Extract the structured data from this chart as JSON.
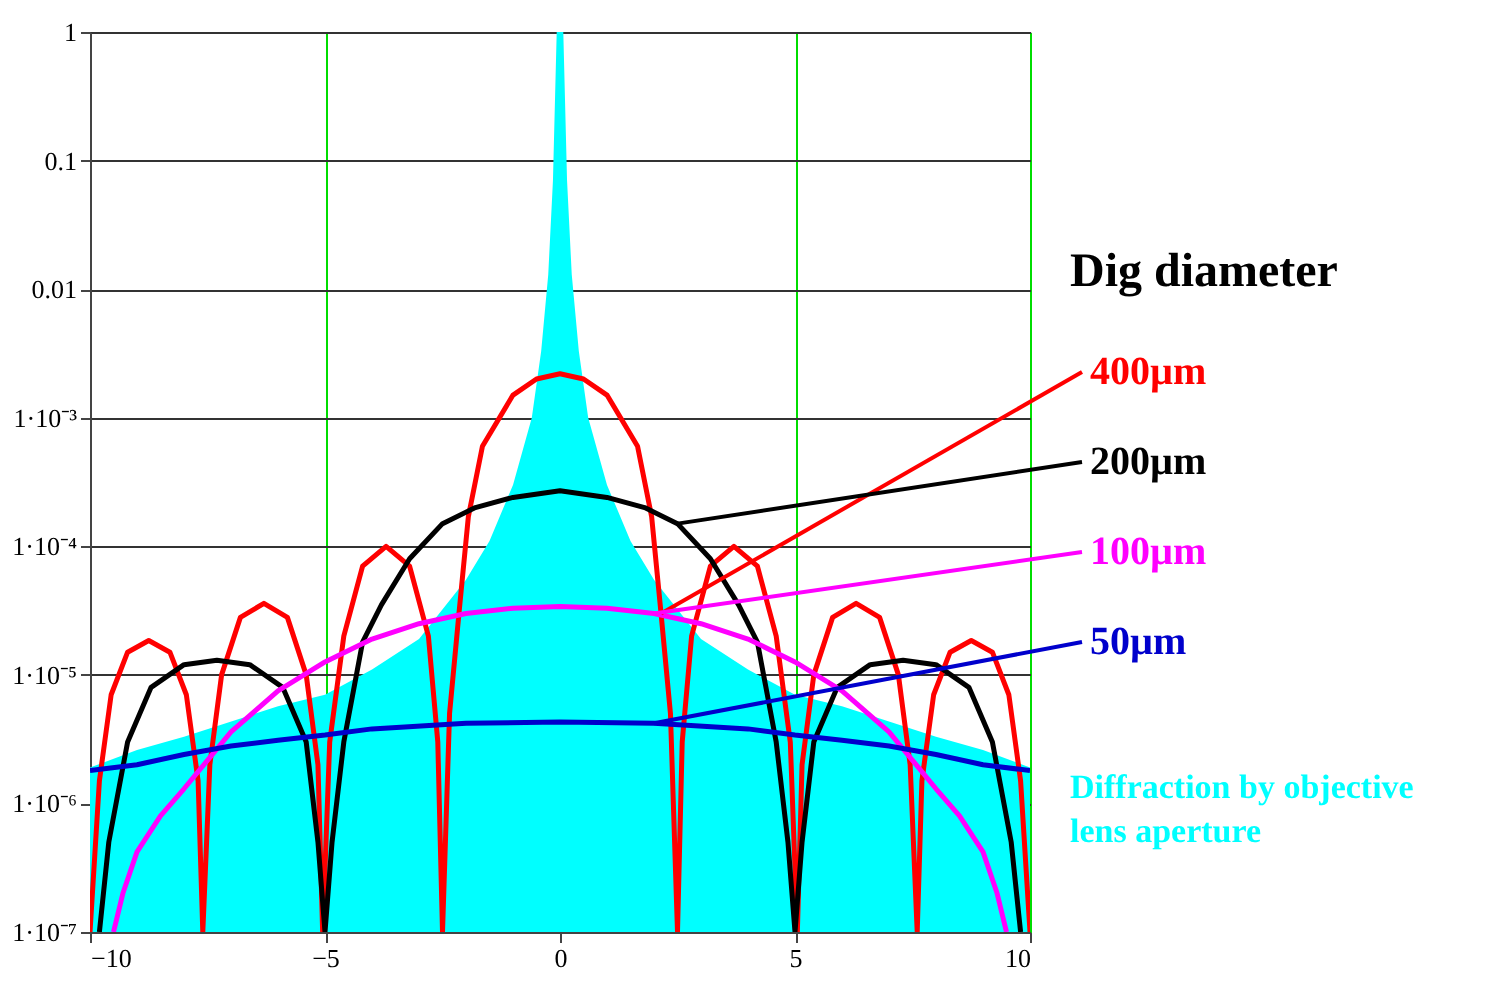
{
  "chart_data": {
    "type": "line",
    "legend_title": "Dig diameter",
    "legend": "right",
    "log": "y",
    "grid": true,
    "line_style": "solid",
    "xlim": [
      -10,
      10
    ],
    "xticks": [
      -10,
      -5,
      0,
      5,
      10
    ],
    "ylim": [
      1e-07,
      1
    ],
    "yticks": [
      {
        "value": 1e-07,
        "label": "1·10⁻⁷"
      },
      {
        "value": 1e-06,
        "label": "1·10⁻⁶"
      },
      {
        "value": 1e-05,
        "label": "1·10⁻⁵"
      },
      {
        "value": 0.0001,
        "label": "1·10⁻⁴"
      },
      {
        "value": 0.001,
        "label": "1·10⁻³"
      },
      0.01,
      0.1,
      1
    ],
    "series": [
      {
        "name": "Diffraction by  objective\nlens aperture",
        "type": "area",
        "color": "#00ffff",
        "x": [
          -10,
          -9,
          -8,
          -6,
          -5,
          -4,
          -3,
          -2,
          -1.5,
          -1,
          -0.6,
          -0.4,
          -0.25,
          -0.15,
          -0.07,
          0,
          0.07,
          0.15,
          0.25,
          0.4,
          0.6,
          1,
          1.5,
          2,
          3,
          4,
          5,
          6,
          8,
          9,
          10
        ],
        "values": [
          1.9e-06,
          2.6e-06,
          3.3e-06,
          5.7e-06,
          7e-06,
          1.1e-05,
          1.9e-05,
          5.5e-05,
          0.00011,
          0.0003,
          0.001,
          0.0033,
          0.013,
          0.07,
          1,
          1,
          1,
          0.07,
          0.013,
          0.0033,
          0.001,
          0.0003,
          0.00011,
          5.5e-05,
          1.9e-05,
          1.1e-05,
          7e-06,
          5.7e-06,
          3.3e-06,
          2.6e-06,
          1.9e-06
        ]
      },
      {
        "name": "400µm",
        "color": "#ff0000",
        "x": [
          -10,
          -9.8,
          -9.55,
          -9.2,
          -8.75,
          -8.3,
          -7.95,
          -7.7,
          -7.6,
          -7.45,
          -7.2,
          -6.8,
          -6.3,
          -5.8,
          -5.4,
          -5.15,
          -5.05,
          -4.9,
          -4.6,
          -4.2,
          -3.7,
          -3.2,
          -2.8,
          -2.6,
          -2.5,
          -2.35,
          -2.15,
          -1.95,
          -1.65,
          -1,
          -0.5,
          0,
          0.5,
          1,
          1.65,
          1.95,
          2.15,
          2.35,
          2.5,
          2.6,
          2.8,
          3.2,
          3.7,
          4.2,
          4.6,
          4.9,
          5.05,
          5.15,
          5.4,
          5.8,
          6.3,
          6.8,
          7.2,
          7.45,
          7.6,
          7.7,
          7.95,
          8.3,
          8.75,
          9.2,
          9.55,
          9.8,
          10
        ],
        "values": [
          1e-07,
          1.5e-06,
          7e-06,
          1.5e-05,
          1.85e-05,
          1.5e-05,
          7e-06,
          1.5e-06,
          1e-07,
          2e-06,
          1e-05,
          2.8e-05,
          3.6e-05,
          2.8e-05,
          1e-05,
          2e-06,
          1e-07,
          3e-06,
          2e-05,
          7e-05,
          0.0001,
          7e-05,
          2e-05,
          3e-06,
          1e-07,
          5e-06,
          3e-05,
          0.00017,
          0.0006,
          0.0015,
          0.002,
          0.0022,
          0.002,
          0.0015,
          0.0006,
          0.00017,
          3e-05,
          5e-06,
          1e-07,
          3e-06,
          2e-05,
          7e-05,
          0.0001,
          7e-05,
          2e-05,
          3e-06,
          1e-07,
          2e-06,
          1e-05,
          2.8e-05,
          3.6e-05,
          2.8e-05,
          1e-05,
          2e-06,
          1e-07,
          1.5e-06,
          7e-06,
          1.5e-05,
          1.85e-05,
          1.5e-05,
          7e-06,
          1.5e-06,
          1e-07
        ]
      },
      {
        "name": "200µm",
        "color": "#000000",
        "x": [
          -9.8,
          -9.6,
          -9.2,
          -8.7,
          -8,
          -7.3,
          -6.6,
          -5.9,
          -5.4,
          -5.15,
          -5,
          -4.85,
          -4.6,
          -4.2,
          -3.8,
          -3.2,
          -2.5,
          -1.8,
          -1,
          0,
          1,
          1.8,
          2.5,
          3.2,
          3.8,
          4.2,
          4.6,
          4.85,
          5,
          5.15,
          5.4,
          5.9,
          6.6,
          7.3,
          8,
          8.7,
          9.2,
          9.6,
          9.8
        ],
        "values": [
          1e-07,
          5e-07,
          3e-06,
          8e-06,
          1.2e-05,
          1.3e-05,
          1.2e-05,
          8e-06,
          3e-06,
          5e-07,
          1e-07,
          5e-07,
          3e-06,
          1.8e-05,
          3.5e-05,
          8e-05,
          0.00015,
          0.0002,
          0.00024,
          0.00027,
          0.00024,
          0.0002,
          0.00015,
          8e-05,
          3.5e-05,
          1.8e-05,
          3e-06,
          5e-07,
          1e-07,
          5e-07,
          3e-06,
          8e-06,
          1.2e-05,
          1.3e-05,
          1.2e-05,
          8e-06,
          3e-06,
          5e-07,
          1e-07
        ]
      },
      {
        "name": "100µm",
        "color": "#ff00ff",
        "x": [
          -9.5,
          -9.3,
          -9,
          -8.5,
          -8,
          -7,
          -6,
          -5,
          -4,
          -3,
          -2,
          -1,
          0,
          1,
          2,
          3,
          4,
          5,
          6,
          7,
          8,
          8.5,
          9,
          9.3,
          9.5
        ],
        "values": [
          1e-07,
          2e-07,
          4.2e-07,
          8e-07,
          1.3e-06,
          3.6e-06,
          7.5e-06,
          1.26e-05,
          1.9e-05,
          2.5e-05,
          3e-05,
          3.3e-05,
          3.4e-05,
          3.3e-05,
          3e-05,
          2.5e-05,
          1.9e-05,
          1.26e-05,
          7.5e-06,
          3.6e-06,
          1.3e-06,
          8e-07,
          4.2e-07,
          2e-07,
          1e-07
        ]
      },
      {
        "name": "50µm",
        "color": "#0000cc",
        "x": [
          -10,
          -9,
          -8,
          -7,
          -6,
          -5,
          -4,
          -2,
          0,
          2,
          4,
          5,
          6,
          7,
          8,
          9,
          10
        ],
        "values": [
          1.8e-06,
          2e-06,
          2.4e-06,
          2.8e-06,
          3.1e-06,
          3.4e-06,
          3.8e-06,
          4.2e-06,
          4.3e-06,
          4.2e-06,
          3.8e-06,
          3.4e-06,
          3.1e-06,
          2.8e-06,
          2.4e-06,
          2e-06,
          1.8e-06
        ]
      }
    ]
  }
}
